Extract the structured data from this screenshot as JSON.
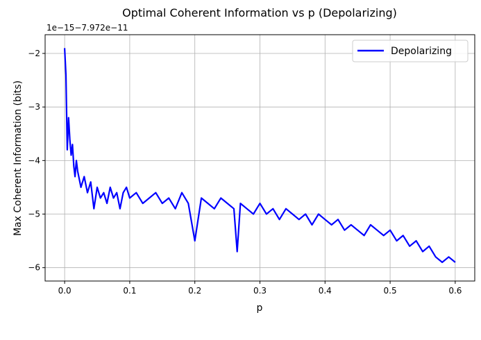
{
  "chart_data": {
    "type": "line",
    "title": "Optimal Coherent Information vs p (Depolarizing)",
    "xlabel": "p",
    "ylabel": "Max Coherent Information (bits)",
    "offset_label": "1e−15−7.972e−11",
    "xlim": [
      -0.03,
      0.63
    ],
    "ylim": [
      -6.25,
      -1.65
    ],
    "xticks": [
      0.0,
      0.1,
      0.2,
      0.3,
      0.4,
      0.5,
      0.6
    ],
    "xtick_labels": [
      "0.0",
      "0.1",
      "0.2",
      "0.3",
      "0.4",
      "0.5",
      "0.6"
    ],
    "yticks": [
      -6,
      -5,
      -4,
      -3,
      -2
    ],
    "ytick_labels": [
      "−6",
      "−5",
      "−4",
      "−3",
      "−2"
    ],
    "grid": true,
    "legend_position": "top-right",
    "series": [
      {
        "name": "Depolarizing",
        "color": "#0000ff",
        "x": [
          0.0,
          0.002,
          0.004,
          0.006,
          0.008,
          0.01,
          0.012,
          0.014,
          0.016,
          0.018,
          0.02,
          0.025,
          0.03,
          0.035,
          0.04,
          0.045,
          0.05,
          0.055,
          0.06,
          0.065,
          0.07,
          0.075,
          0.08,
          0.085,
          0.09,
          0.095,
          0.1,
          0.11,
          0.12,
          0.13,
          0.14,
          0.15,
          0.16,
          0.17,
          0.18,
          0.19,
          0.2,
          0.21,
          0.22,
          0.23,
          0.24,
          0.25,
          0.26,
          0.265,
          0.27,
          0.28,
          0.29,
          0.3,
          0.31,
          0.32,
          0.33,
          0.34,
          0.35,
          0.36,
          0.37,
          0.38,
          0.39,
          0.4,
          0.41,
          0.42,
          0.43,
          0.44,
          0.45,
          0.46,
          0.47,
          0.48,
          0.49,
          0.5,
          0.51,
          0.52,
          0.53,
          0.54,
          0.55,
          0.56,
          0.57,
          0.58,
          0.59,
          0.6
        ],
        "values": [
          -1.9,
          -2.4,
          -3.8,
          -3.2,
          -3.6,
          -3.9,
          -3.7,
          -4.1,
          -4.3,
          -4.0,
          -4.2,
          -4.5,
          -4.3,
          -4.6,
          -4.4,
          -4.9,
          -4.5,
          -4.7,
          -4.6,
          -4.8,
          -4.5,
          -4.7,
          -4.6,
          -4.9,
          -4.6,
          -4.5,
          -4.7,
          -4.6,
          -4.8,
          -4.7,
          -4.6,
          -4.8,
          -4.7,
          -4.9,
          -4.6,
          -4.8,
          -5.5,
          -4.7,
          -4.8,
          -4.9,
          -4.7,
          -4.8,
          -4.9,
          -5.7,
          -4.8,
          -4.9,
          -5.0,
          -4.8,
          -5.0,
          -4.9,
          -5.1,
          -4.9,
          -5.0,
          -5.1,
          -5.0,
          -5.2,
          -5.0,
          -5.1,
          -5.2,
          -5.1,
          -5.3,
          -5.2,
          -5.3,
          -5.4,
          -5.2,
          -5.3,
          -5.4,
          -5.3,
          -5.5,
          -5.4,
          -5.6,
          -5.5,
          -5.7,
          -5.6,
          -5.8,
          -5.9,
          -5.8,
          -5.9
        ]
      }
    ]
  }
}
